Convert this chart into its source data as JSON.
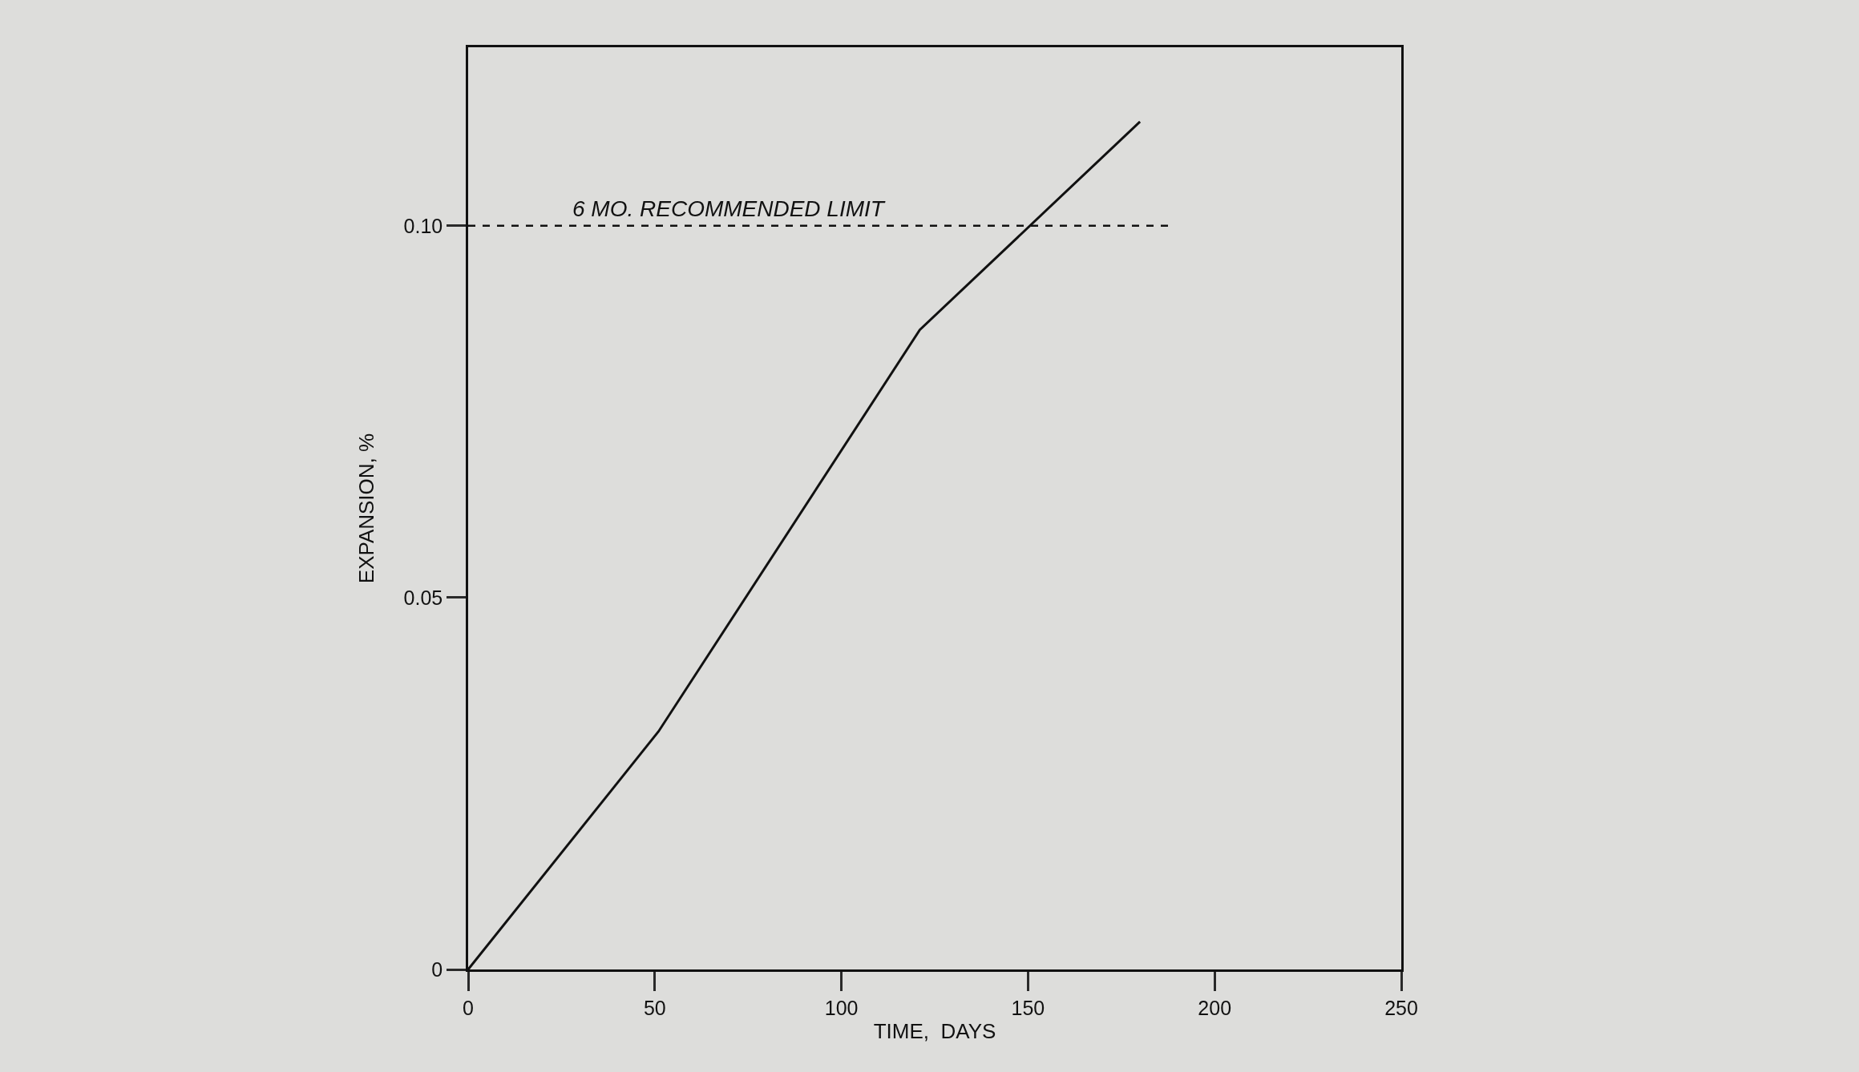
{
  "chart_data": {
    "type": "line",
    "xlabel": "TIME,  DAYS",
    "ylabel": "EXPANSION, %",
    "x": [
      0,
      51,
      121,
      180
    ],
    "series": [
      {
        "color": "#111111",
        "values": [
          0,
          0.032,
          0.086,
          0.114
        ]
      }
    ],
    "xlim": [
      0,
      250
    ],
    "xticks": [
      0,
      50,
      100,
      150,
      200,
      250
    ],
    "ylim": [
      0,
      0.124
    ],
    "yticks": [
      0,
      {
        "value": 0.05,
        "label": "0.05"
      },
      {
        "value": 0.1,
        "label": "0.10"
      }
    ],
    "ref_lines": [
      {
        "axis": "y",
        "value": 0.1,
        "label": "6 MO. RECOMMENDED LIMIT",
        "line_style": "dashed",
        "color": "#111111"
      }
    ],
    "grid": false,
    "marker": "none",
    "line_style": "solid"
  }
}
